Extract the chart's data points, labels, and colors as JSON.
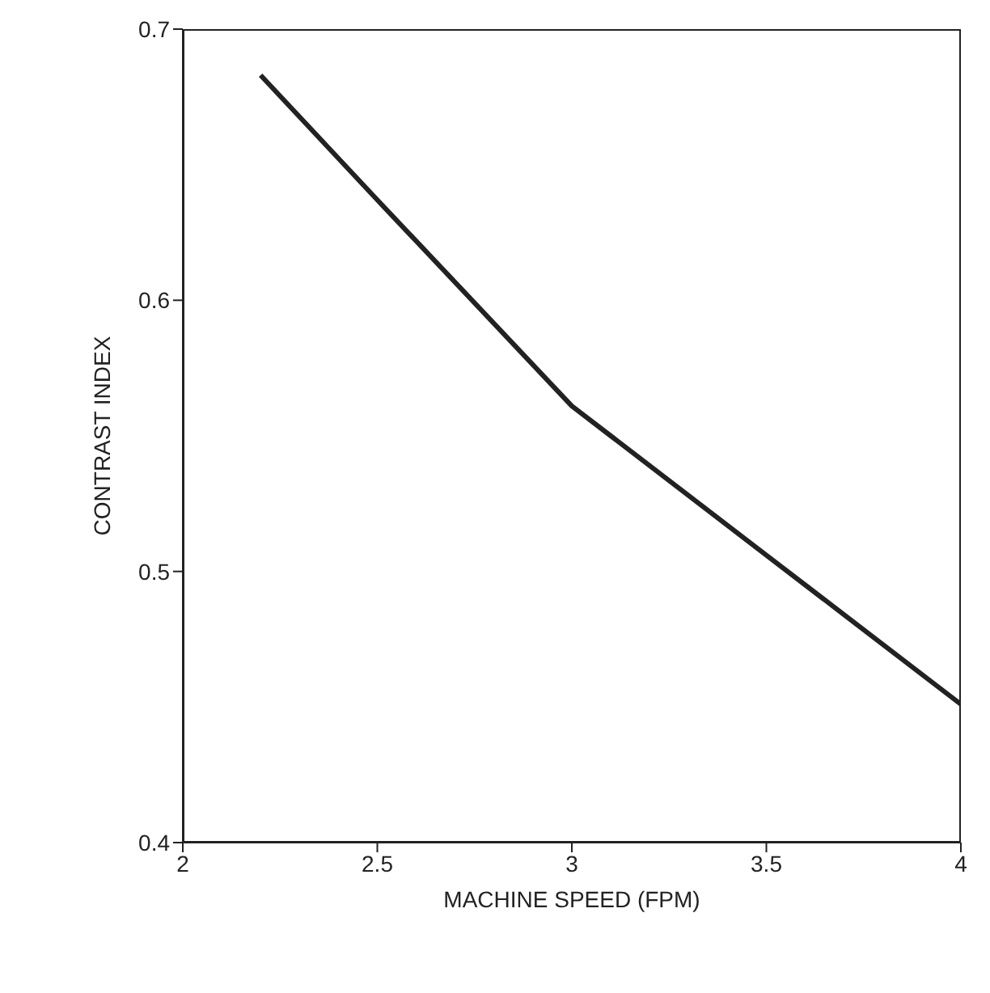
{
  "chart_data": {
    "type": "line",
    "xlabel": "MACHINE SPEED (FPM)",
    "ylabel": "CONTRAST INDEX",
    "x": [
      2.2,
      2.5,
      3.0,
      3.1,
      3.5,
      4.0
    ],
    "series": [
      {
        "color": "#222222",
        "values": [
          0.683,
          0.637,
          0.561,
          0.55,
          0.506,
          0.451
        ]
      }
    ],
    "xlim": [
      2,
      4
    ],
    "xticks": [
      2,
      2.5,
      3,
      3.5,
      4
    ],
    "ylim": [
      0.4,
      0.7
    ],
    "yticks": [
      0.4,
      0.5,
      0.6,
      0.7
    ],
    "grid": false,
    "legend": false,
    "marker": "none",
    "line_style": "solid"
  }
}
